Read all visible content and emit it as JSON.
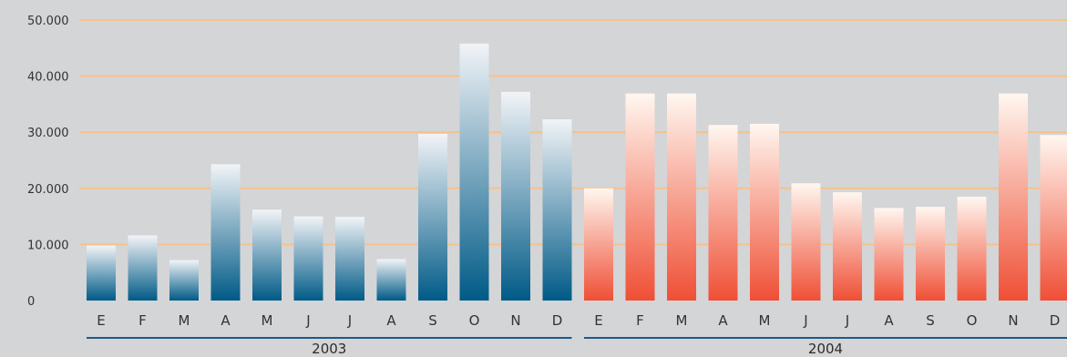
{
  "chart_data": {
    "type": "bar",
    "title": "",
    "xlabel": "",
    "ylabel": "",
    "ylim": [
      0,
      50000
    ],
    "grid": true,
    "legend": "none",
    "y_ticks": [
      {
        "value": 0,
        "label": "0"
      },
      {
        "value": 10000,
        "label": "10.000"
      },
      {
        "value": 20000,
        "label": "20.000"
      },
      {
        "value": 30000,
        "label": "30.000"
      },
      {
        "value": 40000,
        "label": "40.000"
      },
      {
        "value": 50000,
        "label": "50.000"
      }
    ],
    "groups": [
      {
        "label": "2003",
        "categories": [
          "E",
          "F",
          "M",
          "A",
          "M",
          "J",
          "J",
          "A",
          "S",
          "O",
          "N",
          "D"
        ],
        "values": [
          9800,
          11600,
          7200,
          24300,
          16200,
          15000,
          14900,
          7400,
          29700,
          45800,
          37200,
          32300
        ],
        "color_top": "#f2f4f7",
        "color_bottom": "#005a87"
      },
      {
        "label": "2004",
        "categories": [
          "E",
          "F",
          "M",
          "A",
          "M",
          "J",
          "J",
          "A",
          "S",
          "O",
          "N",
          "D"
        ],
        "values": [
          20000,
          36900,
          36900,
          31300,
          31500,
          20900,
          19300,
          16500,
          16700,
          18500,
          36900,
          29500
        ],
        "color_top": "#fff7f0",
        "color_bottom": "#ef4f35"
      }
    ],
    "gridline_color": "#f6c28b",
    "group_underline_color": "#1f5a86"
  }
}
